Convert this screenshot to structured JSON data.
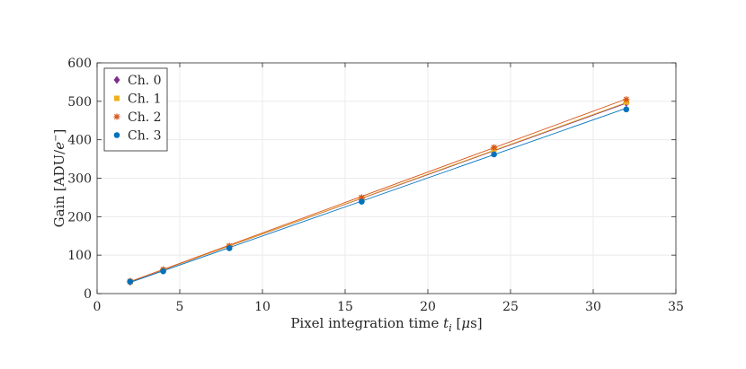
{
  "chart_data": {
    "type": "scatter",
    "xlabel": "Pixel integration time t_i [μs]",
    "xlabel_parts": {
      "pre": "Pixel integration time ",
      "var": "t",
      "sub": "i",
      "post": " [",
      "mu": "μ",
      "unit": "s]"
    },
    "ylabel": "Gain [ADU/e⁻]",
    "ylabel_parts": {
      "pre": "Gain [ADU/",
      "var": "e",
      "sup": "−",
      "post": "]"
    },
    "xlim": [
      0,
      35
    ],
    "ylim": [
      0,
      600
    ],
    "xticks": [
      0,
      5,
      10,
      15,
      20,
      25,
      30,
      35
    ],
    "yticks": [
      0,
      100,
      200,
      300,
      400,
      500,
      600
    ],
    "grid": true,
    "legend_position": "top-left",
    "x": [
      2,
      4,
      8,
      16,
      24,
      32
    ],
    "series": [
      {
        "name": "Ch. 0",
        "marker": "diamond",
        "color": "#7E2F8E",
        "values": [
          31,
          61,
          121,
          246,
          374,
          496
        ],
        "fit": [
          31,
          495
        ]
      },
      {
        "name": "Ch. 1",
        "marker": "square",
        "color": "#EDB120",
        "values": [
          31,
          61,
          122,
          247,
          375,
          498
        ],
        "fit": [
          31,
          497
        ]
      },
      {
        "name": "Ch. 2",
        "marker": "asterisk",
        "color": "#D95319",
        "values": [
          32,
          62,
          124,
          250,
          380,
          505
        ],
        "fit": [
          31,
          506
        ]
      },
      {
        "name": "Ch. 3",
        "marker": "circle",
        "color": "#0072BD",
        "values": [
          31,
          58,
          118,
          239,
          362,
          479
        ],
        "fit": [
          29,
          482
        ]
      }
    ]
  }
}
